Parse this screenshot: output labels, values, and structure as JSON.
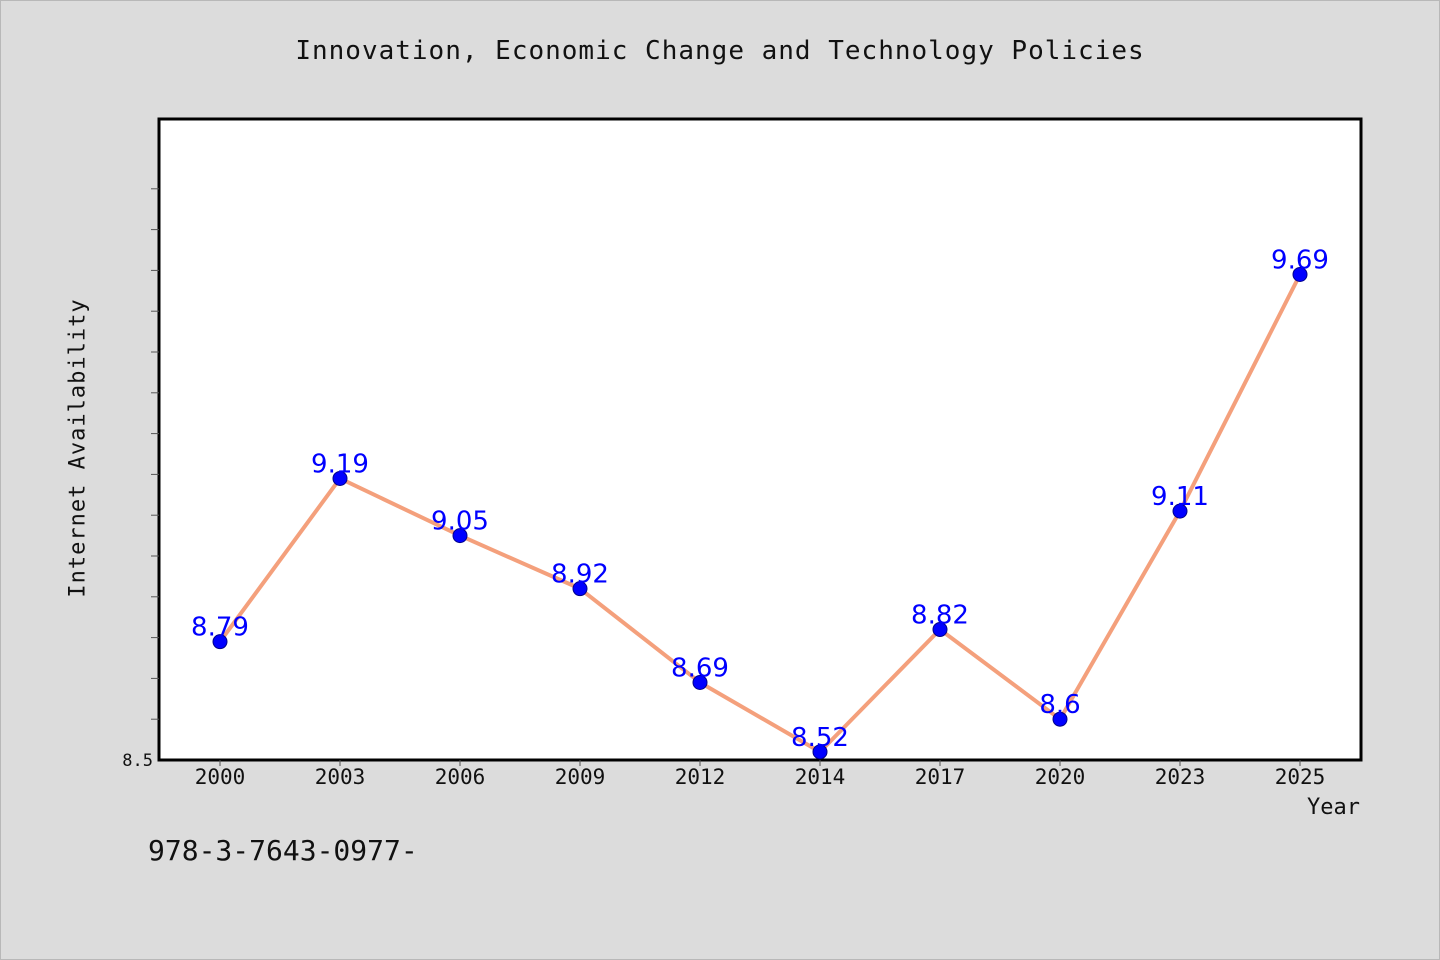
{
  "chart_data": {
    "type": "line",
    "title": "Innovation, Economic Change and Technology Policies",
    "xlabel": "Year",
    "ylabel": "Internet Availability",
    "categories": [
      "2000",
      "2003",
      "2006",
      "2009",
      "2012",
      "2014",
      "2017",
      "2020",
      "2023",
      "2025"
    ],
    "series": [
      {
        "values": [
          8.79,
          9.19,
          9.05,
          8.92,
          8.69,
          8.52,
          8.82,
          8.6,
          9.11,
          9.69
        ],
        "data_labels": [
          "8.79",
          "9.19",
          "9.05",
          "8.92",
          "8.69",
          "8.52",
          "8.82",
          "8.6",
          "9.11",
          "9.69"
        ],
        "line_color": "#f4a07c",
        "marker_color": "#0000ff",
        "label_color": "#0000ff"
      }
    ],
    "ylim": [
      8.5,
      10.0
    ],
    "ytick_labels": [
      "8.5"
    ],
    "grid": false,
    "legend": "none",
    "plot_background": "#ffffff",
    "figure_background": "#dcdcdc"
  },
  "footer": {
    "code": "978-3-7643-0977-"
  }
}
